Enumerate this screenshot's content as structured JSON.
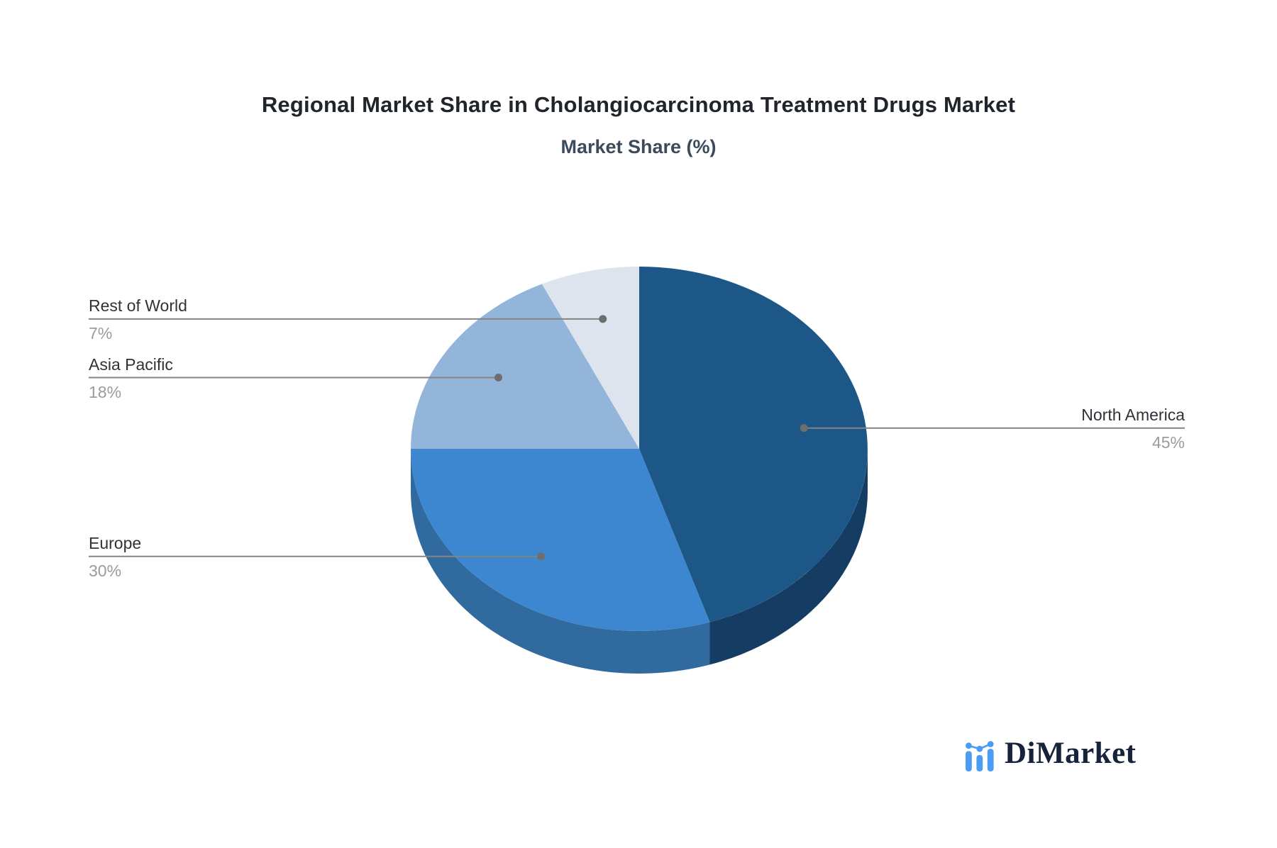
{
  "chart_data": {
    "type": "pie",
    "title": "Regional Market Share in Cholangiocarcinoma Treatment Drugs Market",
    "subtitle": "Market Share (%)",
    "style_3d": true,
    "start_angle_deg": 0,
    "direction": "clockwise",
    "series": [
      {
        "name": "North America",
        "value": 45,
        "pct_label": "45%",
        "color": "#1c5788",
        "side_color": "#153c63",
        "label_side": "right"
      },
      {
        "name": "Europe",
        "value": 30,
        "pct_label": "30%",
        "color": "#3c87cf",
        "side_color": "#316a9e",
        "label_side": "left"
      },
      {
        "name": "Asia Pacific",
        "value": 18,
        "pct_label": "18%",
        "color": "#93b5d9",
        "side_color": "#7395b8",
        "label_side": "left"
      },
      {
        "name": "Rest of World",
        "value": 7,
        "pct_label": "7%",
        "color": "#dee4ee",
        "side_color": "#b9c4d4",
        "label_side": "left"
      }
    ],
    "leader_line_color": "#848484",
    "leader_dot_color": "#6e6e6e",
    "label_name_color": "#2f3337",
    "label_pct_color": "#9b9b9b"
  },
  "logo": {
    "text": "DiMarket",
    "icon": "bar-chart-trend-icon",
    "icon_color": "#4a9df3",
    "text_color": "#16233b"
  }
}
